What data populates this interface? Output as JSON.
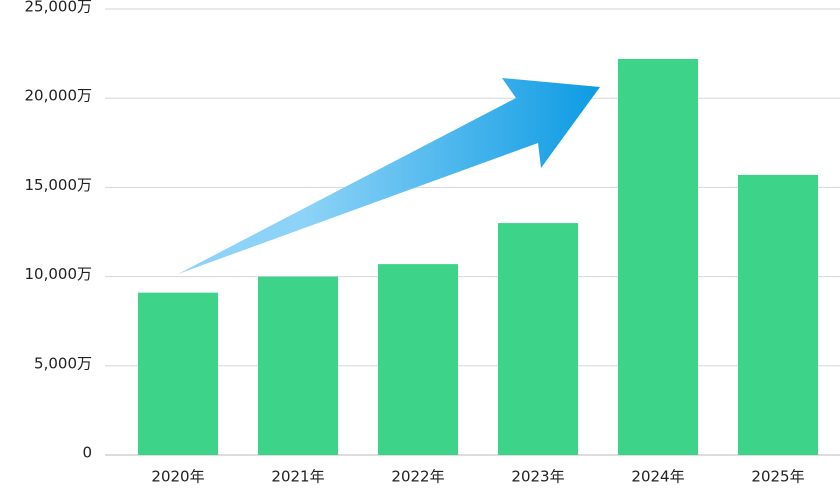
{
  "chart_data": {
    "type": "bar",
    "categories": [
      "2020年",
      "2021年",
      "2022年",
      "2023年",
      "2024年",
      "2025年"
    ],
    "values": [
      9100,
      10000,
      10700,
      13000,
      22200,
      15700
    ],
    "color": "#3dd48a",
    "ylim": [
      0,
      25000
    ],
    "yticks": [
      0,
      {
        "value": 5000,
        "label": "5,000万"
      },
      {
        "value": 10000,
        "label": "10,000万"
      },
      {
        "value": 15000,
        "label": "15,000万"
      },
      {
        "value": 20000,
        "label": "20,000万"
      },
      {
        "value": 25000,
        "label": "25,000万"
      }
    ],
    "grid": true
  }
}
